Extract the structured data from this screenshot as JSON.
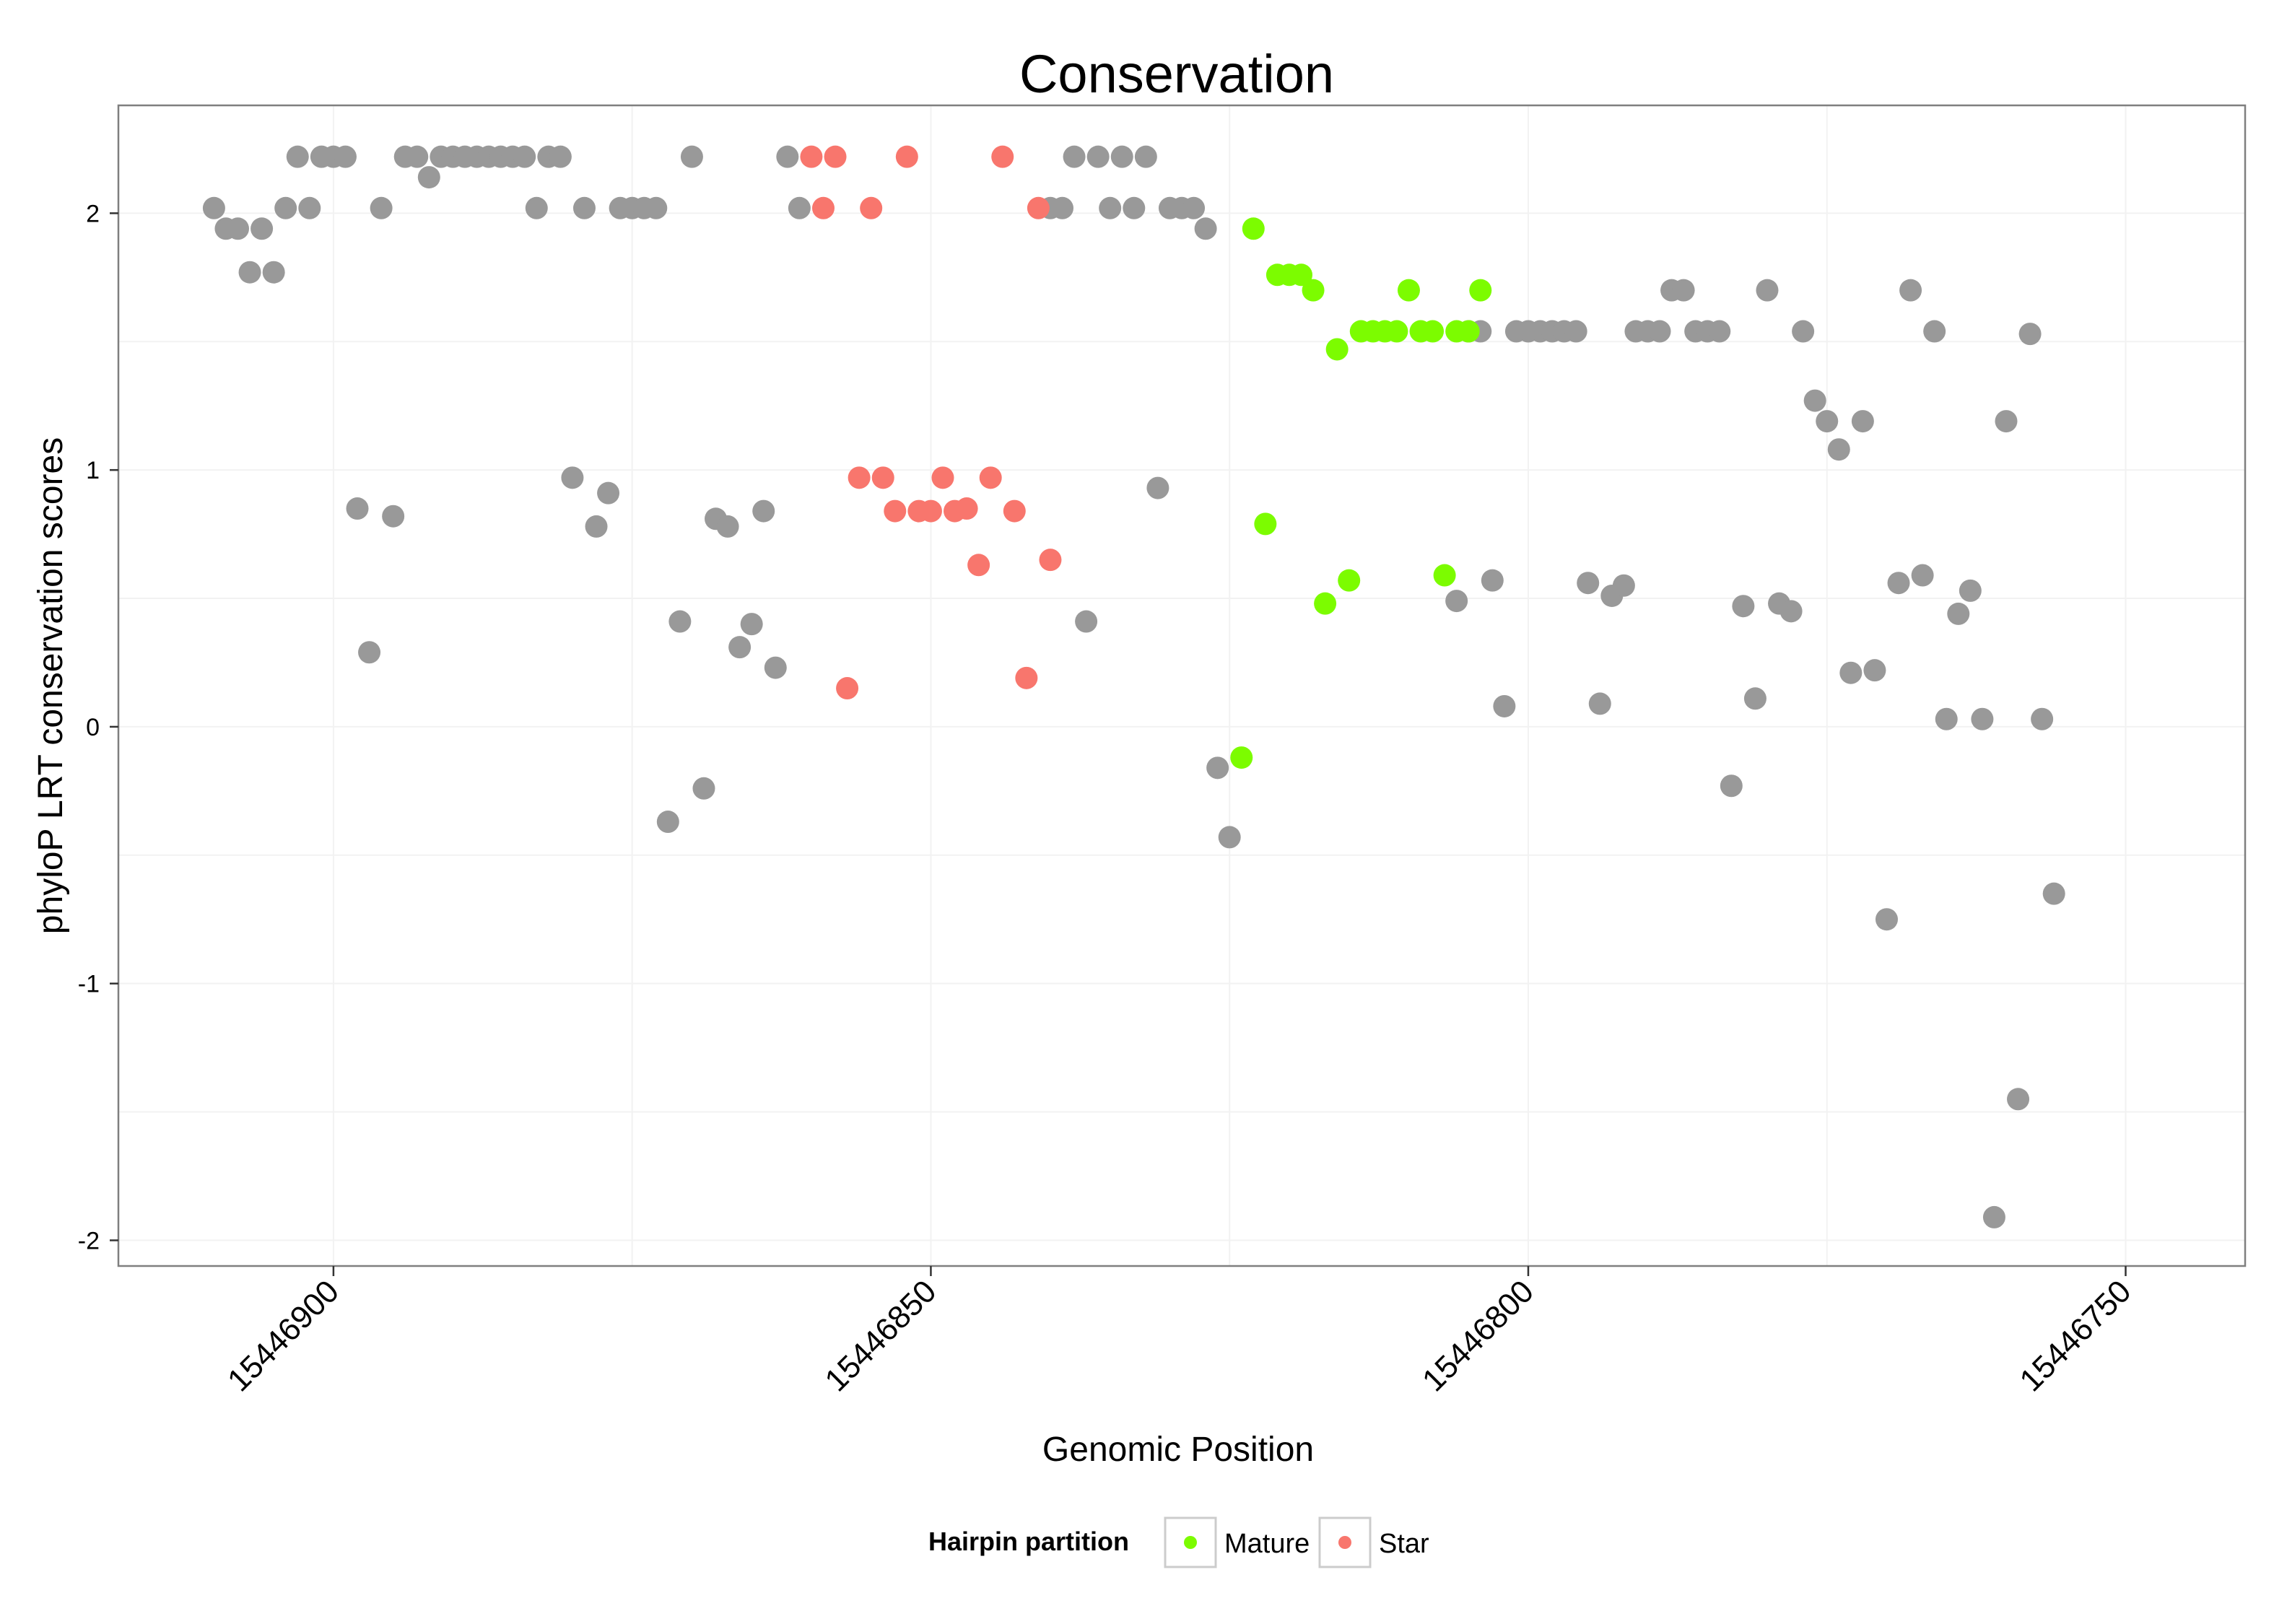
{
  "chart_data": {
    "type": "scatter",
    "title": "Conservation",
    "xlabel": "Genomic Position",
    "ylabel": "phyloP LRT conservation scores",
    "x_reversed": true,
    "xlim": [
      15446740,
      15446918
    ],
    "ylim": [
      -2.1,
      2.42
    ],
    "x_ticks": [
      15446900,
      15446850,
      15446800,
      15446750
    ],
    "x_tick_labels": [
      "15446900",
      "15446850",
      "15446800",
      "15446750"
    ],
    "y_ticks": [
      -2,
      -1,
      0,
      1,
      2
    ],
    "y_tick_labels": [
      "-2",
      "-1",
      "0",
      "1",
      "2"
    ],
    "grid": true,
    "legend": {
      "title": "Hairpin partition",
      "position": "bottom",
      "entries": [
        {
          "label": "Mature",
          "color": "#7CFC00"
        },
        {
          "label": "Star",
          "color": "#F8766D"
        }
      ]
    },
    "other_color": "#999999",
    "series": [
      {
        "name": "Other",
        "color": "#999999",
        "points": [
          [
            15446910,
            2.02
          ],
          [
            15446909,
            1.94
          ],
          [
            15446908,
            1.94
          ],
          [
            15446907,
            1.77
          ],
          [
            15446906,
            1.94
          ],
          [
            15446905,
            1.77
          ],
          [
            15446904,
            2.02
          ],
          [
            15446903,
            2.22
          ],
          [
            15446902,
            2.02
          ],
          [
            15446901,
            2.22
          ],
          [
            15446900,
            2.22
          ],
          [
            15446899,
            2.22
          ],
          [
            15446898,
            0.85
          ],
          [
            15446897,
            0.29
          ],
          [
            15446896,
            2.02
          ],
          [
            15446895,
            0.82
          ],
          [
            15446894,
            2.22
          ],
          [
            15446893,
            2.22
          ],
          [
            15446892,
            2.14
          ],
          [
            15446891,
            2.22
          ],
          [
            15446890,
            2.22
          ],
          [
            15446889,
            2.22
          ],
          [
            15446888,
            2.22
          ],
          [
            15446887,
            2.22
          ],
          [
            15446886,
            2.22
          ],
          [
            15446885,
            2.22
          ],
          [
            15446884,
            2.22
          ],
          [
            15446883,
            2.02
          ],
          [
            15446882,
            2.22
          ],
          [
            15446881,
            2.22
          ],
          [
            15446880,
            0.97
          ],
          [
            15446879,
            2.02
          ],
          [
            15446878,
            0.78
          ],
          [
            15446877,
            0.91
          ],
          [
            15446876,
            2.02
          ],
          [
            15446875,
            2.02
          ],
          [
            15446874,
            2.02
          ],
          [
            15446873,
            2.02
          ],
          [
            15446872,
            -0.37
          ],
          [
            15446871,
            0.41
          ],
          [
            15446870,
            2.22
          ],
          [
            15446869,
            -0.24
          ],
          [
            15446868,
            0.81
          ],
          [
            15446867,
            0.78
          ],
          [
            15446866,
            0.31
          ],
          [
            15446865,
            0.4
          ],
          [
            15446864,
            0.84
          ],
          [
            15446863,
            0.23
          ],
          [
            15446862,
            2.22
          ],
          [
            15446861,
            2.02
          ],
          [
            15446840,
            2.02
          ],
          [
            15446839,
            2.02
          ],
          [
            15446838,
            2.22
          ],
          [
            15446837,
            0.41
          ],
          [
            15446836,
            2.22
          ],
          [
            15446835,
            2.02
          ],
          [
            15446834,
            2.22
          ],
          [
            15446833,
            2.02
          ],
          [
            15446832,
            2.22
          ],
          [
            15446831,
            0.93
          ],
          [
            15446830,
            2.02
          ],
          [
            15446829,
            2.02
          ],
          [
            15446828,
            2.02
          ],
          [
            15446827,
            1.94
          ],
          [
            15446826,
            -0.16
          ],
          [
            15446825,
            -0.43
          ],
          [
            15446806,
            0.49
          ],
          [
            15446805,
            1.54
          ],
          [
            15446804,
            1.54
          ],
          [
            15446803,
            0.57
          ],
          [
            15446802,
            0.08
          ],
          [
            15446801,
            1.54
          ],
          [
            15446800,
            1.54
          ],
          [
            15446799,
            1.54
          ],
          [
            15446798,
            1.54
          ],
          [
            15446797,
            1.54
          ],
          [
            15446796,
            1.54
          ],
          [
            15446795,
            0.56
          ],
          [
            15446794,
            0.09
          ],
          [
            15446793,
            0.51
          ],
          [
            15446792,
            0.55
          ],
          [
            15446791,
            1.54
          ],
          [
            15446790,
            1.54
          ],
          [
            15446789,
            1.54
          ],
          [
            15446788,
            1.7
          ],
          [
            15446787,
            1.7
          ],
          [
            15446786,
            1.54
          ],
          [
            15446785,
            1.54
          ],
          [
            15446784,
            1.54
          ],
          [
            15446783,
            -0.23
          ],
          [
            15446782,
            0.47
          ],
          [
            15446781,
            0.11
          ],
          [
            15446780,
            1.7
          ],
          [
            15446779,
            0.48
          ],
          [
            15446778,
            0.45
          ],
          [
            15446777,
            1.54
          ],
          [
            15446776,
            1.27
          ],
          [
            15446775,
            1.19
          ],
          [
            15446774,
            1.08
          ],
          [
            15446773,
            0.21
          ],
          [
            15446772,
            1.19
          ],
          [
            15446771,
            0.22
          ],
          [
            15446770,
            -0.75
          ],
          [
            15446769,
            0.56
          ],
          [
            15446768,
            1.7
          ],
          [
            15446767,
            0.59
          ],
          [
            15446766,
            1.54
          ],
          [
            15446765,
            0.03
          ],
          [
            15446764,
            0.44
          ],
          [
            15446763,
            0.53
          ],
          [
            15446762,
            0.03
          ],
          [
            15446761,
            -1.91
          ],
          [
            15446760,
            1.19
          ],
          [
            15446759,
            -1.45
          ],
          [
            15446758,
            1.53
          ],
          [
            15446757,
            0.03
          ],
          [
            15446756,
            -0.65
          ]
        ]
      },
      {
        "name": "Star",
        "color": "#F8766D",
        "points": [
          [
            15446860,
            2.22
          ],
          [
            15446859,
            2.02
          ],
          [
            15446858,
            2.22
          ],
          [
            15446857,
            0.15
          ],
          [
            15446856,
            0.97
          ],
          [
            15446855,
            2.02
          ],
          [
            15446854,
            0.97
          ],
          [
            15446853,
            0.84
          ],
          [
            15446852,
            2.22
          ],
          [
            15446851,
            0.84
          ],
          [
            15446850,
            0.84
          ],
          [
            15446849,
            0.97
          ],
          [
            15446848,
            0.84
          ],
          [
            15446847,
            0.85
          ],
          [
            15446846,
            0.63
          ],
          [
            15446845,
            0.97
          ],
          [
            15446844,
            2.22
          ],
          [
            15446843,
            0.84
          ],
          [
            15446842,
            0.19
          ],
          [
            15446841,
            2.02
          ],
          [
            15446840,
            0.65
          ]
        ]
      },
      {
        "name": "Mature",
        "color": "#7CFC00",
        "points": [
          [
            15446824,
            -0.12
          ],
          [
            15446823,
            1.94
          ],
          [
            15446822,
            0.79
          ],
          [
            15446821,
            1.76
          ],
          [
            15446820,
            1.76
          ],
          [
            15446819,
            1.76
          ],
          [
            15446818,
            1.7
          ],
          [
            15446817,
            0.48
          ],
          [
            15446816,
            1.47
          ],
          [
            15446815,
            0.57
          ],
          [
            15446814,
            1.54
          ],
          [
            15446813,
            1.54
          ],
          [
            15446812,
            1.54
          ],
          [
            15446811,
            1.54
          ],
          [
            15446810,
            1.7
          ],
          [
            15446809,
            1.54
          ],
          [
            15446808,
            1.54
          ],
          [
            15446807,
            0.59
          ],
          [
            15446806,
            1.54
          ],
          [
            15446805,
            1.54
          ],
          [
            15446804,
            1.7
          ]
        ]
      }
    ]
  }
}
